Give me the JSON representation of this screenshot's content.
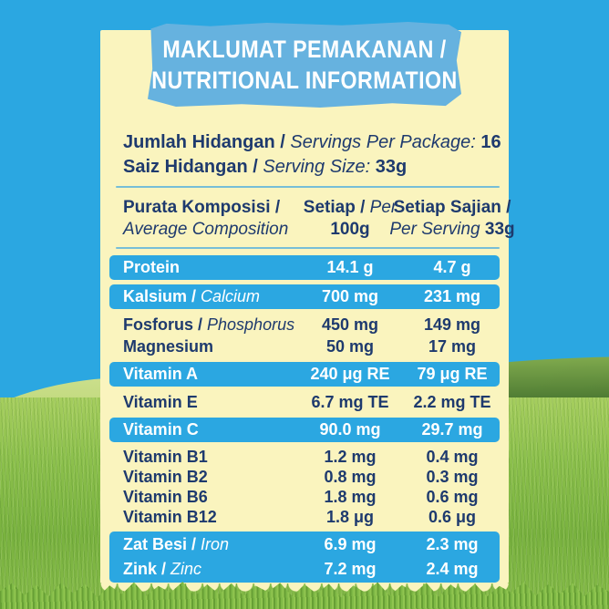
{
  "colors": {
    "sky_blue": "#2BA7E1",
    "banner_blue": "#66B2DF",
    "card_yellow": "#FAF4BE",
    "text_navy": "#1E3A6E",
    "highlight_band_blue": "#2BA7E1",
    "grass_green": "#7FB946"
  },
  "banner": {
    "line1": "MAKLUMAT PEMAKANAN /",
    "line2": "NUTRITIONAL INFORMATION"
  },
  "servings": {
    "line1_bold": "Jumlah Hidangan / ",
    "line1_italic": "Servings Per Package: ",
    "line1_value": "16",
    "line2_bold": "Saiz Hidangan / ",
    "line2_italic": "Serving Size: ",
    "line2_value": "33g"
  },
  "table": {
    "header": {
      "col1_bold": "Purata Komposisi /",
      "col1_italic": "Average Composition",
      "col2_bold": "Setiap / ",
      "col2_italic": "Per",
      "col2_line2": "100g",
      "col3_bold": "Setiap Sajian /",
      "col3_italic": "Per Serving ",
      "col3_value": "33g"
    },
    "groups": [
      {
        "highlight": true,
        "rows": [
          {
            "label_bold": "Protein",
            "label_italic": "",
            "per_100g": "14.1 g",
            "per_serving": "4.7 g"
          }
        ]
      },
      {
        "highlight": true,
        "rows": [
          {
            "label_bold": "Kalsium / ",
            "label_italic": "Calcium",
            "per_100g": "700 mg",
            "per_serving": "231 mg"
          }
        ]
      },
      {
        "highlight": false,
        "rows": [
          {
            "label_bold": "Fosforus / ",
            "label_italic": "Phosphorus",
            "per_100g": "450 mg",
            "per_serving": "149 mg"
          },
          {
            "label_bold": "Magnesium",
            "label_italic": "",
            "per_100g": "50 mg",
            "per_serving": "17 mg"
          }
        ]
      },
      {
        "highlight": true,
        "rows": [
          {
            "label_bold": "Vitamin A",
            "label_italic": "",
            "per_100g": "240 μg RE",
            "per_serving": "79 μg RE"
          }
        ]
      },
      {
        "highlight": false,
        "rows": [
          {
            "label_bold": "Vitamin E",
            "label_italic": "",
            "per_100g": "6.7 mg TE",
            "per_serving": "2.2 mg TE"
          }
        ]
      },
      {
        "highlight": true,
        "rows": [
          {
            "label_bold": "Vitamin C",
            "label_italic": "",
            "per_100g": "90.0 mg",
            "per_serving": "29.7 mg"
          }
        ]
      },
      {
        "highlight": false,
        "rows": [
          {
            "label_bold": "Vitamin B1",
            "label_italic": "",
            "per_100g": "1.2 mg",
            "per_serving": "0.4 mg"
          },
          {
            "label_bold": "Vitamin B2",
            "label_italic": "",
            "per_100g": "0.8 mg",
            "per_serving": "0.3 mg"
          },
          {
            "label_bold": "Vitamin B6",
            "label_italic": "",
            "per_100g": "1.8 mg",
            "per_serving": "0.6 mg"
          },
          {
            "label_bold": "Vitamin B12",
            "label_italic": "",
            "per_100g": "1.8 μg",
            "per_serving": "0.6 μg"
          }
        ]
      },
      {
        "highlight": true,
        "rows": [
          {
            "label_bold": "Zat Besi / ",
            "label_italic": "Iron",
            "per_100g": "6.9 mg",
            "per_serving": "2.3 mg"
          },
          {
            "label_bold": "Zink / ",
            "label_italic": "Zinc",
            "per_100g": "7.2 mg",
            "per_serving": "2.4 mg"
          }
        ]
      }
    ]
  }
}
